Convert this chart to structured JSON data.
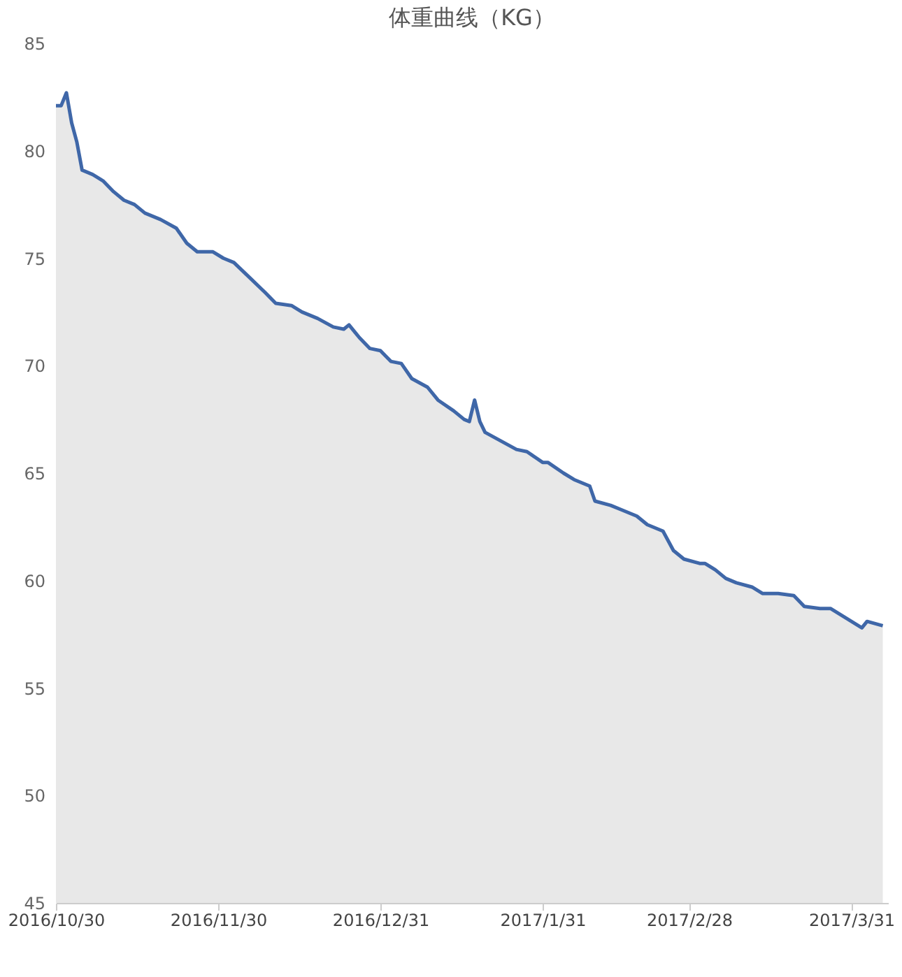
{
  "chart_data": {
    "type": "area",
    "title": "体重曲线（KG）",
    "x": [
      "2016-10-30",
      "2016-10-31",
      "2016-11-01",
      "2016-11-02",
      "2016-11-03",
      "2016-11-04",
      "2016-11-06",
      "2016-11-08",
      "2016-11-10",
      "2016-11-12",
      "2016-11-14",
      "2016-11-16",
      "2016-11-19",
      "2016-11-22",
      "2016-11-24",
      "2016-11-26",
      "2016-11-29",
      "2016-12-01",
      "2016-12-03",
      "2016-12-06",
      "2016-12-09",
      "2016-12-11",
      "2016-12-14",
      "2016-12-16",
      "2016-12-19",
      "2016-12-22",
      "2016-12-24",
      "2016-12-25",
      "2016-12-27",
      "2016-12-29",
      "2016-12-31",
      "2017-01-02",
      "2017-01-04",
      "2017-01-06",
      "2017-01-09",
      "2017-01-11",
      "2017-01-14",
      "2017-01-16",
      "2017-01-17",
      "2017-01-18",
      "2017-01-19",
      "2017-01-20",
      "2017-01-23",
      "2017-01-26",
      "2017-01-28",
      "2017-01-31",
      "2017-02-01",
      "2017-02-04",
      "2017-02-06",
      "2017-02-09",
      "2017-02-10",
      "2017-02-13",
      "2017-02-15",
      "2017-02-18",
      "2017-02-20",
      "2017-02-23",
      "2017-02-25",
      "2017-02-27",
      "2017-03-02",
      "2017-03-03",
      "2017-03-05",
      "2017-03-07",
      "2017-03-09",
      "2017-03-12",
      "2017-03-14",
      "2017-03-17",
      "2017-03-20",
      "2017-03-22",
      "2017-03-25",
      "2017-03-27",
      "2017-03-29",
      "2017-03-31",
      "2017-04-02",
      "2017-04-03",
      "2017-04-06"
    ],
    "series": [
      {
        "color": "#3f67a8",
        "values": [
          82.1,
          82.1,
          82.7,
          81.3,
          80.4,
          79.1,
          78.9,
          78.6,
          78.1,
          77.7,
          77.5,
          77.1,
          76.8,
          76.4,
          75.7,
          75.3,
          75.3,
          75.0,
          74.8,
          74.1,
          73.4,
          72.9,
          72.8,
          72.5,
          72.2,
          71.8,
          71.7,
          71.9,
          71.3,
          70.8,
          70.7,
          70.2,
          70.1,
          69.4,
          69.0,
          68.4,
          67.9,
          67.5,
          67.4,
          68.4,
          67.4,
          66.9,
          66.5,
          66.1,
          66.0,
          65.5,
          65.5,
          65.0,
          64.7,
          64.4,
          63.7,
          63.5,
          63.3,
          63.0,
          62.6,
          62.3,
          61.4,
          61.0,
          60.8,
          60.8,
          60.5,
          60.1,
          59.9,
          59.7,
          59.4,
          59.4,
          59.3,
          58.8,
          58.7,
          58.7,
          58.4,
          58.1,
          57.8,
          58.1,
          57.9
        ]
      }
    ],
    "xlim": [
      "2016-10-30",
      "2017-04-07"
    ],
    "xticks": [
      {
        "value": "2016-10-30",
        "label": "2016/10/30"
      },
      {
        "value": "2016-11-30",
        "label": "2016/11/30"
      },
      {
        "value": "2016-12-31",
        "label": "2016/12/31"
      },
      {
        "value": "2017-01-31",
        "label": "2017/1/31"
      },
      {
        "value": "2017-02-28",
        "label": "2017/2/28"
      },
      {
        "value": "2017-03-31",
        "label": "2017/3/31"
      }
    ],
    "ylim": [
      45,
      85
    ],
    "yticks": [
      45,
      50,
      55,
      60,
      65,
      70,
      75,
      80,
      85
    ],
    "grid": false
  }
}
